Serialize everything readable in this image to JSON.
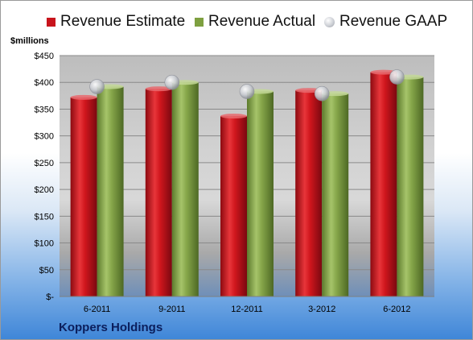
{
  "chart_data": {
    "type": "bar",
    "categories": [
      "6-2011",
      "9-2011",
      "12-2011",
      "3-2012",
      "6-2012"
    ],
    "series": [
      {
        "name": "Revenue Estimate",
        "values": [
          372,
          388,
          337,
          385,
          419
        ],
        "color": "#c8141c"
      },
      {
        "name": "Revenue Actual",
        "values": [
          392,
          400,
          383,
          379,
          410
        ],
        "color": "#7ea040"
      }
    ],
    "markers": {
      "name": "Revenue GAAP",
      "values": [
        392,
        400,
        383,
        379,
        410
      ],
      "color": "#c9ccd2"
    },
    "ylabel": "$millions",
    "ylim": [
      0,
      450
    ],
    "yticks": [
      "$-",
      "$50",
      "$100",
      "$150",
      "$200",
      "$250",
      "$300",
      "$350",
      "$400",
      "$450"
    ],
    "grid": true,
    "legend": "top"
  },
  "footer": {
    "company": "Koppers Holdings"
  }
}
